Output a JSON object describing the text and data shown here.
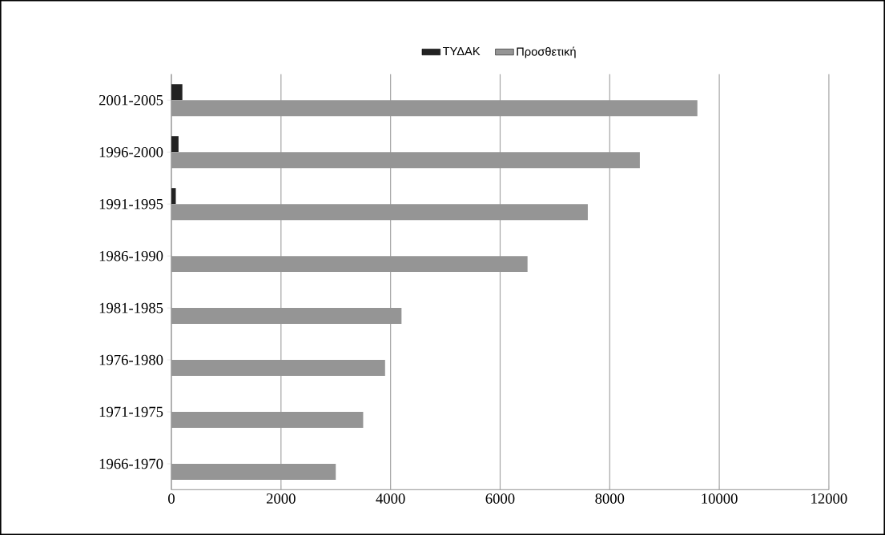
{
  "chart_data": {
    "type": "bar",
    "orientation": "horizontal",
    "categories": [
      "2001-2005",
      "1996-2000",
      "1991-1995",
      "1986-1990",
      "1981-1985",
      "1976-1980",
      "1971-1975",
      "1966-1970"
    ],
    "series": [
      {
        "name": "ΤΥΔΑΚ",
        "color": "#222222",
        "values": [
          200,
          130,
          80,
          0,
          0,
          0,
          0,
          0
        ]
      },
      {
        "name": "Προσθετική",
        "color": "#959595",
        "values": [
          9600,
          8550,
          7600,
          6500,
          4200,
          3900,
          3500,
          3000
        ]
      }
    ],
    "xlim": [
      0,
      12000
    ],
    "xticks": [
      0,
      2000,
      4000,
      6000,
      8000,
      10000,
      12000
    ],
    "grid": "x",
    "legend": "top"
  }
}
